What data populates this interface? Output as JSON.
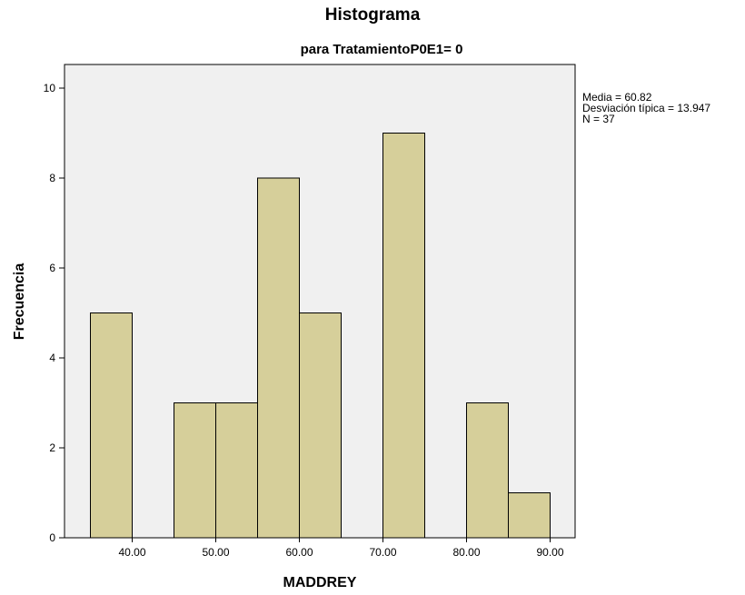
{
  "chart_data": {
    "type": "bar",
    "subtype": "histogram",
    "title": "Histograma",
    "subtitle": "para TratamientoP0E1= 0",
    "xlabel": "MADDREY",
    "ylabel": "Frecuencia",
    "bins": [
      {
        "start": 35,
        "end": 40,
        "count": 5
      },
      {
        "start": 40,
        "end": 45,
        "count": 0
      },
      {
        "start": 45,
        "end": 50,
        "count": 3
      },
      {
        "start": 50,
        "end": 55,
        "count": 3
      },
      {
        "start": 55,
        "end": 60,
        "count": 8
      },
      {
        "start": 60,
        "end": 65,
        "count": 5
      },
      {
        "start": 65,
        "end": 70,
        "count": 0
      },
      {
        "start": 70,
        "end": 75,
        "count": 9
      },
      {
        "start": 75,
        "end": 80,
        "count": 0
      },
      {
        "start": 80,
        "end": 85,
        "count": 3
      },
      {
        "start": 85,
        "end": 90,
        "count": 1
      }
    ],
    "xticks": [
      "40.00",
      "50.00",
      "60.00",
      "70.00",
      "80.00",
      "90.00"
    ],
    "xtick_values": [
      40,
      50,
      60,
      70,
      80,
      90
    ],
    "yticks": [
      "0",
      "2",
      "4",
      "6",
      "8",
      "10"
    ],
    "ytick_values": [
      0,
      2,
      4,
      6,
      8,
      10
    ],
    "xlim": [
      30,
      92
    ],
    "ylim": [
      0,
      10.5
    ],
    "grid": false,
    "bar_color": "#d6cf9a",
    "bar_edge_color": "#000000",
    "plot_background": "#f0f0f0",
    "stats": {
      "mean_label": "Media = 60.82",
      "sd_label": "Desviación típica = 13.947",
      "n_label": "N = 37"
    }
  }
}
